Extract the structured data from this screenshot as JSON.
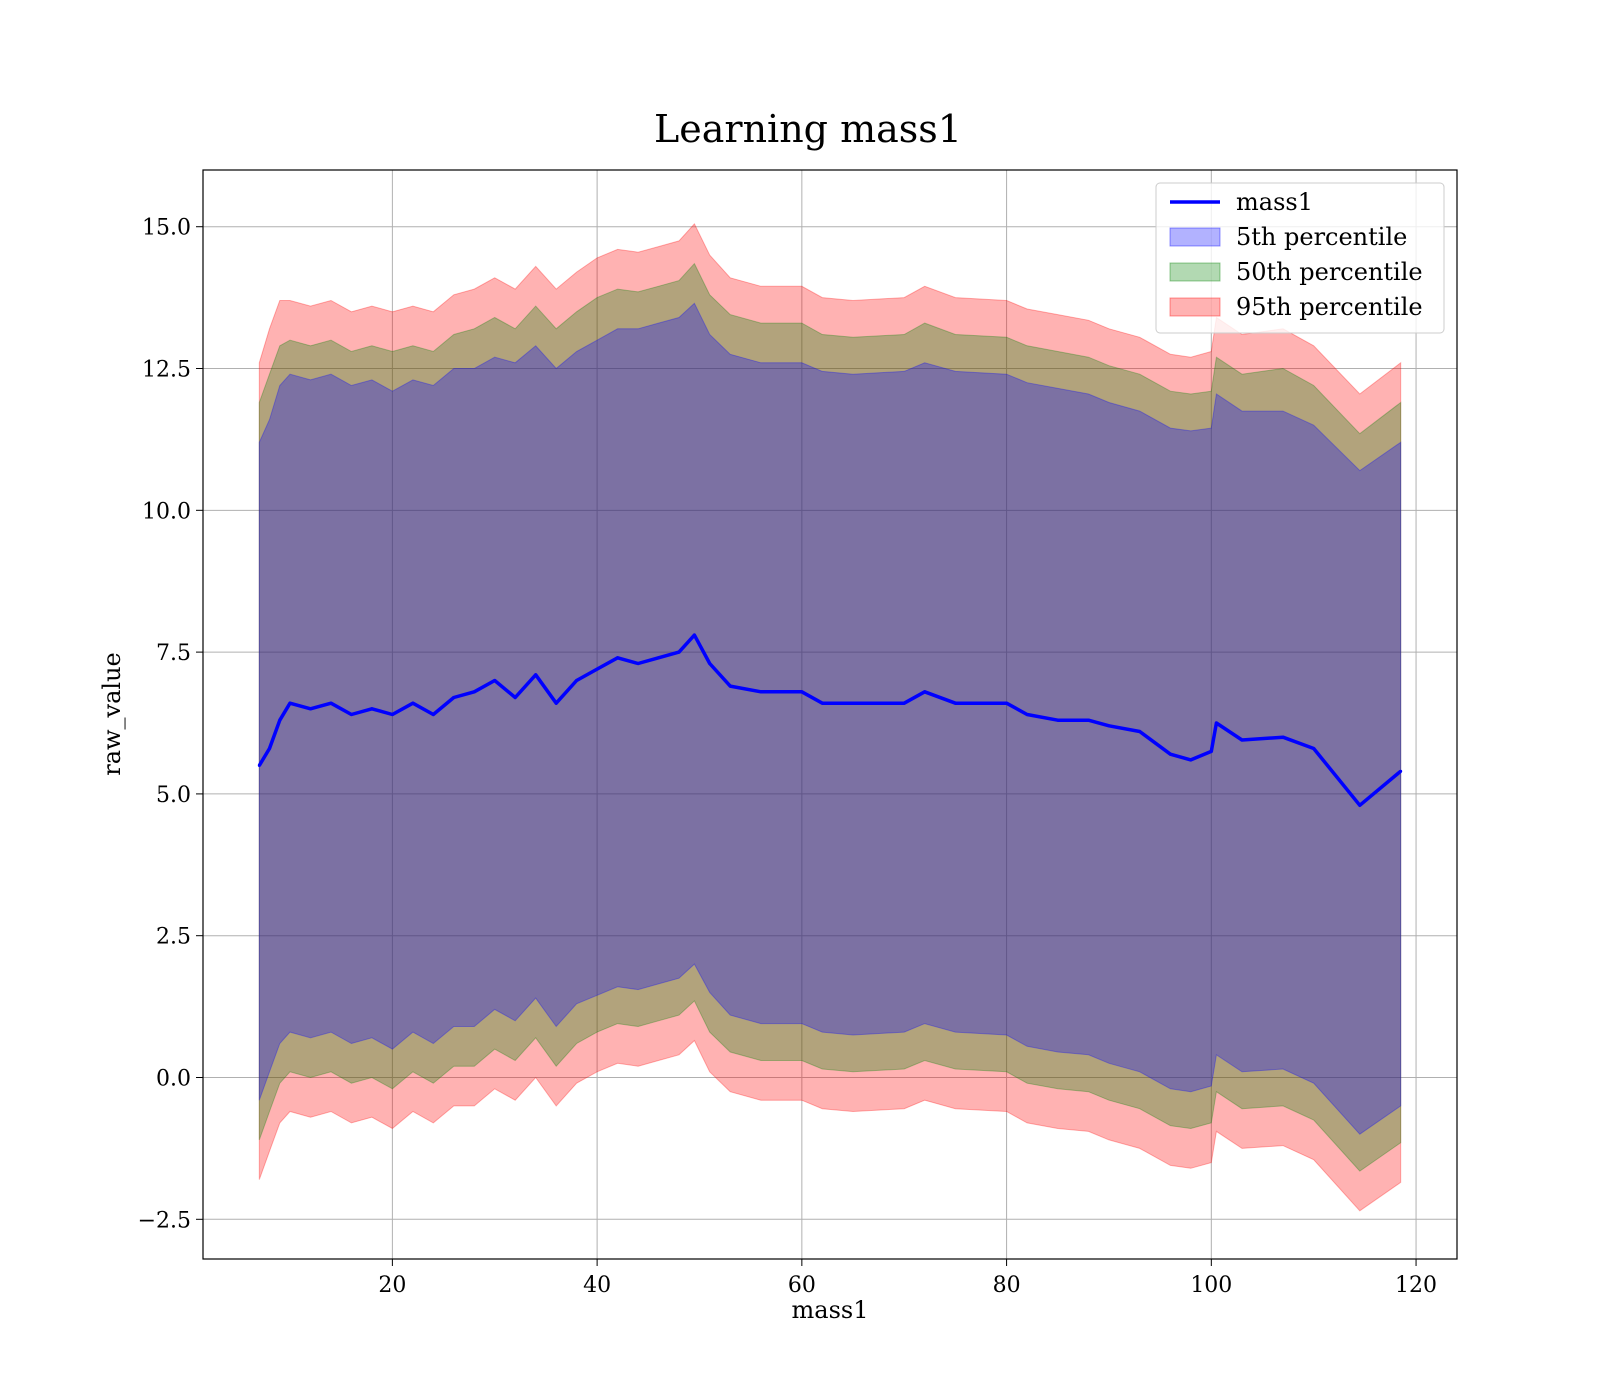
{
  "chart_data": {
    "type": "area",
    "title": "Learning mass1",
    "xlabel": "mass1",
    "ylabel": "raw_value",
    "xlim": [
      1.5,
      124
    ],
    "ylim": [
      -3.2,
      16.0
    ],
    "xticks": [
      20,
      40,
      60,
      80,
      100,
      120
    ],
    "xtick_labels": [
      "20",
      "40",
      "60",
      "80",
      "100",
      "120"
    ],
    "yticks": [
      -2.5,
      0.0,
      2.5,
      5.0,
      7.5,
      10.0,
      12.5,
      15.0
    ],
    "ytick_labels": [
      "−2.5",
      "0.0",
      "2.5",
      "5.0",
      "7.5",
      "10.0",
      "12.5",
      "15.0"
    ],
    "grid": true,
    "legend_position": "top-right",
    "x": [
      7,
      8,
      9,
      10,
      12,
      14,
      16,
      18,
      20,
      22,
      24,
      26,
      28,
      30,
      32,
      34,
      36,
      38,
      40,
      42,
      44,
      46,
      48,
      49.5,
      51,
      53,
      56,
      60,
      62,
      65,
      70,
      72,
      75,
      80,
      82,
      85,
      88,
      90,
      93,
      96,
      98,
      100,
      100.5,
      103,
      107,
      110,
      114.5,
      118.5
    ],
    "series": [
      {
        "name": "mass1",
        "kind": "line",
        "color": "#0000ff",
        "values": [
          5.5,
          5.8,
          6.3,
          6.6,
          6.5,
          6.6,
          6.4,
          6.5,
          6.4,
          6.6,
          6.4,
          6.7,
          6.8,
          7.0,
          6.7,
          7.1,
          6.6,
          7.0,
          7.2,
          7.4,
          7.3,
          7.4,
          7.5,
          7.8,
          7.3,
          6.9,
          6.8,
          6.8,
          6.6,
          6.6,
          6.6,
          6.8,
          6.6,
          6.6,
          6.4,
          6.3,
          6.3,
          6.2,
          6.1,
          5.7,
          5.6,
          5.75,
          6.25,
          5.95,
          6.0,
          5.8,
          4.8,
          5.4
        ]
      },
      {
        "name": "5th percentile",
        "kind": "band",
        "color": "#0000ff",
        "upper": [
          11.2,
          11.6,
          12.2,
          12.4,
          12.3,
          12.4,
          12.2,
          12.3,
          12.1,
          12.3,
          12.2,
          12.5,
          12.5,
          12.7,
          12.6,
          12.9,
          12.5,
          12.8,
          13.0,
          13.2,
          13.2,
          13.3,
          13.4,
          13.65,
          13.1,
          12.75,
          12.6,
          12.6,
          12.45,
          12.4,
          12.45,
          12.6,
          12.45,
          12.4,
          12.25,
          12.15,
          12.05,
          11.9,
          11.75,
          11.45,
          11.4,
          11.45,
          12.05,
          11.75,
          11.75,
          11.5,
          10.7,
          11.2
        ],
        "lower": [
          -0.4,
          0.1,
          0.6,
          0.8,
          0.7,
          0.8,
          0.6,
          0.7,
          0.5,
          0.8,
          0.6,
          0.9,
          0.9,
          1.2,
          1.0,
          1.4,
          0.9,
          1.3,
          1.45,
          1.6,
          1.55,
          1.65,
          1.75,
          2.0,
          1.5,
          1.1,
          0.95,
          0.95,
          0.8,
          0.75,
          0.8,
          0.95,
          0.8,
          0.75,
          0.55,
          0.45,
          0.4,
          0.25,
          0.1,
          -0.2,
          -0.25,
          -0.15,
          0.4,
          0.1,
          0.15,
          -0.1,
          -1.0,
          -0.5
        ]
      },
      {
        "name": "50th percentile",
        "kind": "band",
        "color": "#008000",
        "upper": [
          11.9,
          12.4,
          12.9,
          13.0,
          12.9,
          13.0,
          12.8,
          12.9,
          12.8,
          12.9,
          12.8,
          13.1,
          13.2,
          13.4,
          13.2,
          13.6,
          13.2,
          13.5,
          13.75,
          13.9,
          13.85,
          13.95,
          14.05,
          14.35,
          13.8,
          13.45,
          13.3,
          13.3,
          13.1,
          13.05,
          13.1,
          13.3,
          13.1,
          13.05,
          12.9,
          12.8,
          12.7,
          12.55,
          12.4,
          12.1,
          12.05,
          12.1,
          12.7,
          12.4,
          12.5,
          12.2,
          11.35,
          11.9
        ],
        "lower": [
          -1.1,
          -0.6,
          -0.1,
          0.1,
          0.0,
          0.1,
          -0.1,
          0.0,
          -0.2,
          0.1,
          -0.1,
          0.2,
          0.2,
          0.5,
          0.3,
          0.7,
          0.2,
          0.6,
          0.8,
          0.95,
          0.9,
          1.0,
          1.1,
          1.35,
          0.8,
          0.45,
          0.3,
          0.3,
          0.15,
          0.1,
          0.15,
          0.3,
          0.15,
          0.1,
          -0.1,
          -0.2,
          -0.25,
          -0.4,
          -0.55,
          -0.85,
          -0.9,
          -0.8,
          -0.25,
          -0.55,
          -0.5,
          -0.75,
          -1.65,
          -1.15
        ]
      },
      {
        "name": "95th percentile",
        "kind": "band",
        "color": "#ff0000",
        "upper": [
          12.6,
          13.2,
          13.7,
          13.7,
          13.6,
          13.7,
          13.5,
          13.6,
          13.5,
          13.6,
          13.5,
          13.8,
          13.9,
          14.1,
          13.9,
          14.3,
          13.9,
          14.2,
          14.45,
          14.6,
          14.55,
          14.65,
          14.75,
          15.05,
          14.5,
          14.1,
          13.95,
          13.95,
          13.75,
          13.7,
          13.75,
          13.95,
          13.75,
          13.7,
          13.55,
          13.45,
          13.35,
          13.2,
          13.05,
          12.75,
          12.7,
          12.8,
          13.4,
          13.1,
          13.2,
          12.9,
          12.05,
          12.6
        ],
        "lower": [
          -1.8,
          -1.3,
          -0.8,
          -0.6,
          -0.7,
          -0.6,
          -0.8,
          -0.7,
          -0.9,
          -0.6,
          -0.8,
          -0.5,
          -0.5,
          -0.2,
          -0.4,
          0.0,
          -0.5,
          -0.1,
          0.1,
          0.25,
          0.2,
          0.3,
          0.4,
          0.65,
          0.1,
          -0.25,
          -0.4,
          -0.4,
          -0.55,
          -0.6,
          -0.55,
          -0.4,
          -0.55,
          -0.6,
          -0.8,
          -0.9,
          -0.95,
          -1.1,
          -1.25,
          -1.55,
          -1.6,
          -1.5,
          -0.95,
          -1.25,
          -1.2,
          -1.45,
          -2.35,
          -1.85
        ]
      }
    ]
  }
}
